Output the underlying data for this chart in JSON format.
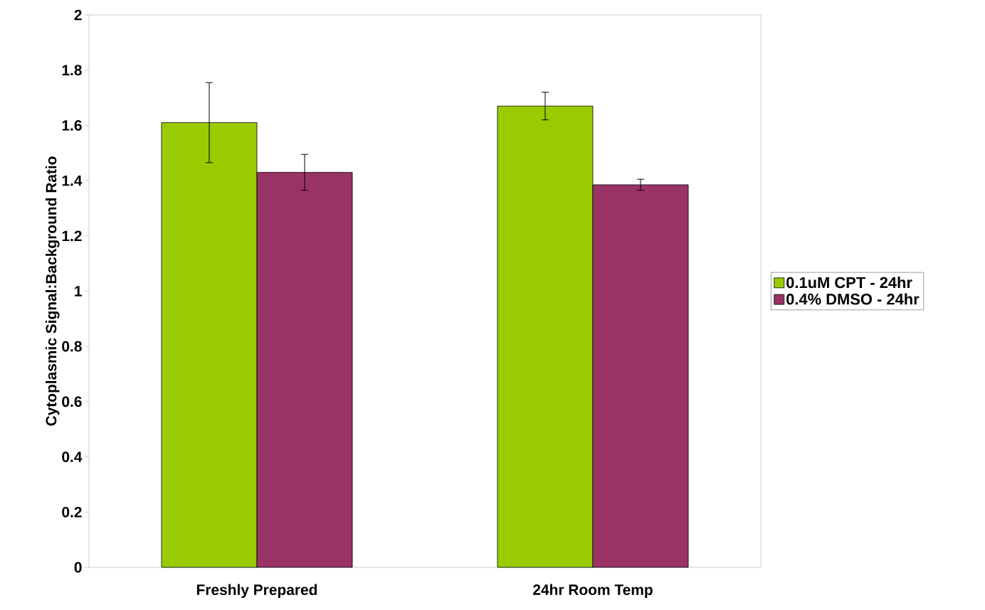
{
  "chart_data": {
    "type": "bar",
    "ylabel": "Cytoplasmic Signal:Background Ratio",
    "categories": [
      "Freshly Prepared",
      "24hr Room Temp"
    ],
    "series": [
      {
        "name": "0.1uM CPT - 24hr",
        "color": "#99cc00",
        "values": [
          1.61,
          1.67
        ],
        "errors": [
          0.145,
          0.05
        ]
      },
      {
        "name": "0.4% DMSO - 24hr",
        "color": "#993366",
        "values": [
          1.43,
          1.385
        ],
        "errors": [
          0.065,
          0.02
        ]
      }
    ],
    "ylim": [
      0,
      2
    ],
    "yticks": [
      0,
      0.2,
      0.4,
      0.6,
      0.8,
      1,
      1.2,
      1.4,
      1.6,
      1.8,
      2
    ],
    "grid": false,
    "legend": "right"
  }
}
